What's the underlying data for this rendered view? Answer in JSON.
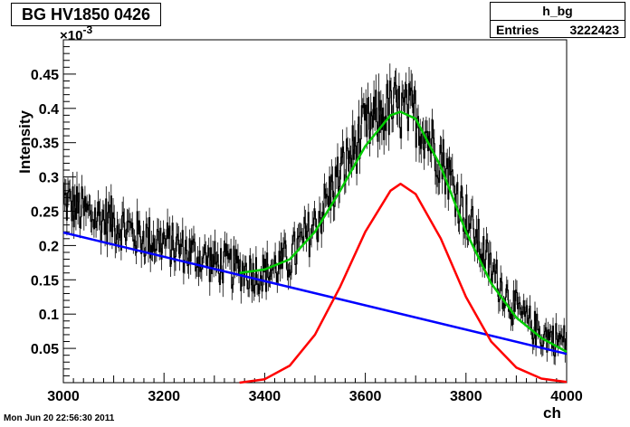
{
  "header": {
    "title": "BG HV1850 0426",
    "stats_name": "h_bg",
    "entries_label": "Entries",
    "entries_value": "3222423"
  },
  "footer": {
    "timestamp": "Mon Jun 20 22:56:30 2011"
  },
  "chart_data": {
    "type": "line",
    "xlabel": "ch",
    "ylabel": "Intensity",
    "y_multiplier_label": "×10",
    "y_multiplier_exponent": "-3",
    "xlim": [
      3000,
      4000
    ],
    "ylim": [
      0.0,
      0.5
    ],
    "x_ticks": [
      3000,
      3200,
      3400,
      3600,
      3800,
      4000
    ],
    "x_tick_labels": [
      "3000",
      "3200",
      "3400",
      "3600",
      "3800",
      "4000"
    ],
    "y_ticks": [
      0.05,
      0.1,
      0.15,
      0.2,
      0.25,
      0.3,
      0.35,
      0.4,
      0.45
    ],
    "y_tick_labels": [
      "0.05",
      "0.1",
      "0.15",
      "0.2",
      "0.25",
      "0.3",
      "0.35",
      "0.4",
      "0.45"
    ],
    "grid": false,
    "histogram": {
      "color": "#000000",
      "x": [
        3000,
        3050,
        3100,
        3150,
        3200,
        3250,
        3300,
        3350,
        3400,
        3450,
        3500,
        3550,
        3600,
        3650,
        3700,
        3750,
        3800,
        3850,
        3900,
        3950,
        4000
      ],
      "values": [
        0.265,
        0.245,
        0.235,
        0.215,
        0.205,
        0.19,
        0.175,
        0.165,
        0.16,
        0.18,
        0.23,
        0.305,
        0.37,
        0.4,
        0.39,
        0.33,
        0.245,
        0.165,
        0.105,
        0.07,
        0.06
      ]
    },
    "series": [
      {
        "color": "#0000ff",
        "x": [
          3000,
          4000
        ],
        "values": [
          0.219,
          0.042
        ]
      },
      {
        "color": "#ff0000",
        "x": [
          3350,
          3400,
          3450,
          3500,
          3550,
          3600,
          3650,
          3670,
          3700,
          3750,
          3800,
          3850,
          3900,
          3950,
          4000
        ],
        "values": [
          0.0,
          0.005,
          0.025,
          0.07,
          0.14,
          0.22,
          0.28,
          0.29,
          0.275,
          0.21,
          0.125,
          0.06,
          0.022,
          0.006,
          0.001
        ]
      },
      {
        "color": "#00cc00",
        "x": [
          3350,
          3400,
          3450,
          3500,
          3550,
          3600,
          3650,
          3670,
          3700,
          3750,
          3800,
          3850,
          3900,
          3950,
          4000
        ],
        "values": [
          0.16,
          0.165,
          0.18,
          0.22,
          0.28,
          0.345,
          0.39,
          0.395,
          0.385,
          0.315,
          0.22,
          0.145,
          0.095,
          0.065,
          0.045
        ]
      }
    ]
  }
}
